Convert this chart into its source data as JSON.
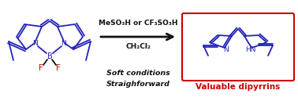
{
  "bg_color": "#ffffff",
  "blue_color": "#2222bb",
  "red_color": "#cc0000",
  "black_color": "#111111",
  "arrow_text_line1": "MeSO₃H or CF₃SO₃H",
  "arrow_text_line2": "CH₂Cl₂",
  "bottom_text_line1": "Soft conditions",
  "bottom_text_line2": "Straighforward",
  "label_valuable": "Valuable dipyrrins",
  "figsize": [
    3.78,
    1.29
  ],
  "dpi": 100
}
